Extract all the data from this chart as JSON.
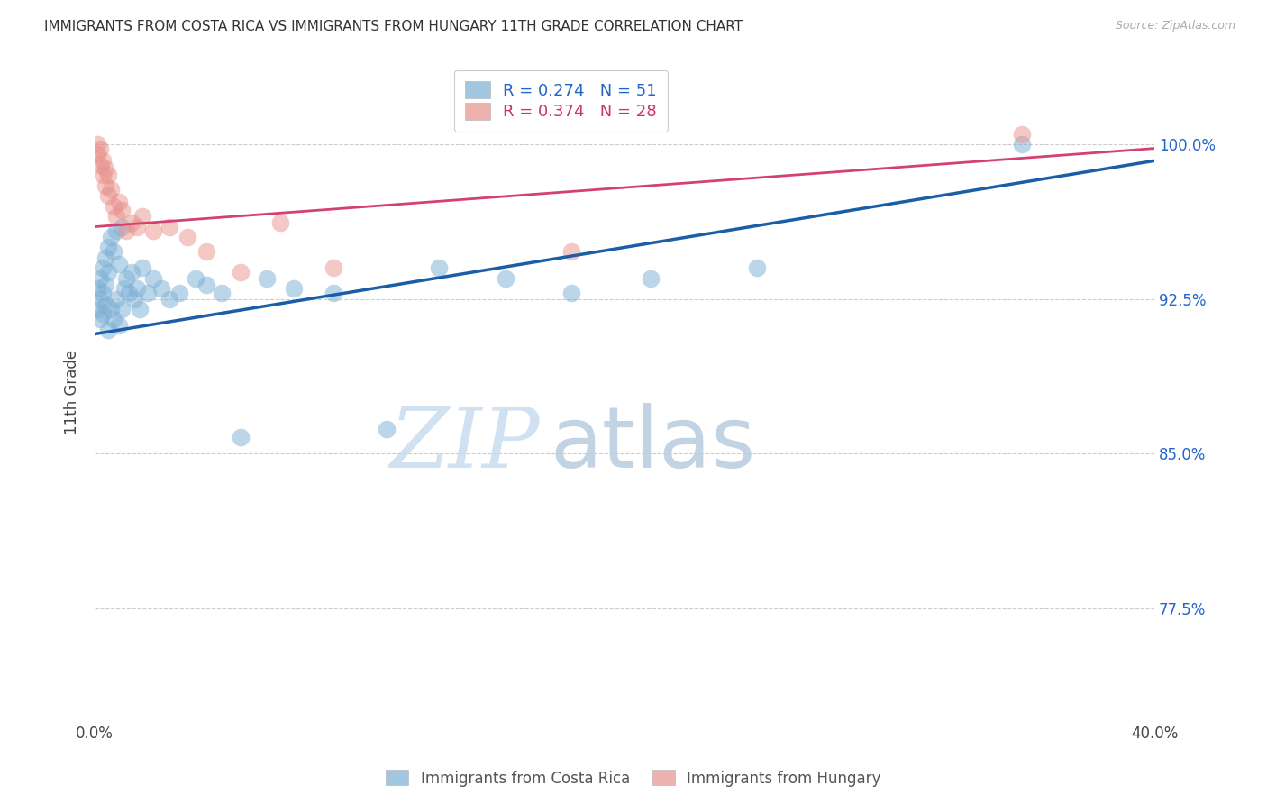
{
  "title": "IMMIGRANTS FROM COSTA RICA VS IMMIGRANTS FROM HUNGARY 11TH GRADE CORRELATION CHART",
  "source": "Source: ZipAtlas.com",
  "ylabel": "11th Grade",
  "ytick_labels": [
    "100.0%",
    "92.5%",
    "85.0%",
    "77.5%"
  ],
  "ytick_values": [
    1.0,
    0.925,
    0.85,
    0.775
  ],
  "xlim": [
    0.0,
    0.4
  ],
  "ylim": [
    0.72,
    1.04
  ],
  "legend1_label": "R = 0.274   N = 51",
  "legend2_label": "R = 0.374   N = 28",
  "blue_color": "#7bafd4",
  "pink_color": "#e8928c",
  "blue_line_color": "#1a5ea8",
  "pink_line_color": "#d44070",
  "watermark_zip": "ZIP",
  "watermark_atlas": "atlas",
  "costa_rica_x": [
    0.001,
    0.001,
    0.002,
    0.002,
    0.002,
    0.003,
    0.003,
    0.003,
    0.004,
    0.004,
    0.004,
    0.005,
    0.005,
    0.005,
    0.006,
    0.006,
    0.007,
    0.007,
    0.008,
    0.008,
    0.009,
    0.009,
    0.01,
    0.01,
    0.011,
    0.012,
    0.013,
    0.014,
    0.015,
    0.016,
    0.017,
    0.018,
    0.02,
    0.022,
    0.025,
    0.028,
    0.032,
    0.038,
    0.042,
    0.048,
    0.055,
    0.065,
    0.075,
    0.09,
    0.11,
    0.13,
    0.155,
    0.18,
    0.21,
    0.25,
    0.35
  ],
  "costa_rica_y": [
    0.93,
    0.92,
    0.935,
    0.925,
    0.915,
    0.94,
    0.928,
    0.918,
    0.945,
    0.932,
    0.922,
    0.95,
    0.938,
    0.91,
    0.955,
    0.92,
    0.948,
    0.915,
    0.958,
    0.925,
    0.942,
    0.912,
    0.96,
    0.92,
    0.93,
    0.935,
    0.928,
    0.938,
    0.925,
    0.93,
    0.92,
    0.94,
    0.928,
    0.935,
    0.93,
    0.925,
    0.928,
    0.935,
    0.932,
    0.928,
    0.858,
    0.935,
    0.93,
    0.928,
    0.862,
    0.94,
    0.935,
    0.928,
    0.935,
    0.94,
    1.0
  ],
  "hungary_x": [
    0.001,
    0.001,
    0.002,
    0.002,
    0.003,
    0.003,
    0.004,
    0.004,
    0.005,
    0.005,
    0.006,
    0.007,
    0.008,
    0.009,
    0.01,
    0.012,
    0.014,
    0.016,
    0.018,
    0.022,
    0.028,
    0.035,
    0.042,
    0.055,
    0.07,
    0.09,
    0.18,
    0.35
  ],
  "hungary_y": [
    1.0,
    0.995,
    0.998,
    0.99,
    0.985,
    0.992,
    0.988,
    0.98,
    0.975,
    0.985,
    0.978,
    0.97,
    0.965,
    0.972,
    0.968,
    0.958,
    0.962,
    0.96,
    0.965,
    0.958,
    0.96,
    0.955,
    0.948,
    0.938,
    0.962,
    0.94,
    0.948,
    1.005
  ],
  "costa_rica_R": 0.274,
  "costa_rica_N": 51,
  "hungary_R": 0.374,
  "hungary_N": 28,
  "blue_line_x0": 0.0,
  "blue_line_y0": 0.908,
  "blue_line_x1": 0.4,
  "blue_line_y1": 0.992,
  "pink_line_x0": 0.0,
  "pink_line_y0": 0.96,
  "pink_line_x1": 0.4,
  "pink_line_y1": 0.998
}
